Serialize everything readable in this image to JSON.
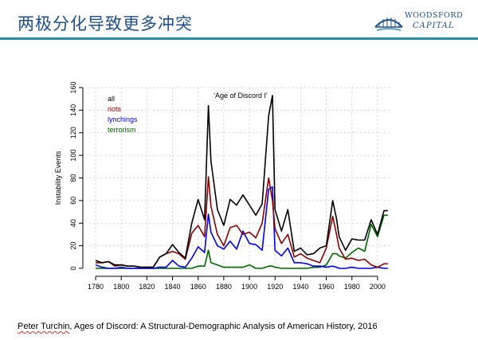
{
  "header": {
    "title": "两极分化导致更多冲突",
    "logo": {
      "line1": "WOODSFORD",
      "line2": "CAPITAL",
      "color": "#1f4e8c"
    }
  },
  "colors": {
    "accent_bar": "#2a8aa8"
  },
  "chart_data": {
    "type": "line",
    "title": "",
    "annotation": "'Age of Discord I'",
    "xlabel": "",
    "ylabel": "Instability Events",
    "xlim": [
      1775,
      2010
    ],
    "ylim": [
      0,
      160
    ],
    "xticks": [
      1780,
      1800,
      1820,
      1840,
      1860,
      1880,
      1900,
      1920,
      1940,
      1960,
      1980,
      2000
    ],
    "yticks": [
      0,
      20,
      40,
      60,
      80,
      100,
      120,
      140,
      160
    ],
    "grid": true,
    "legend_position": "top-left",
    "x": [
      1780,
      1785,
      1790,
      1795,
      1800,
      1805,
      1810,
      1815,
      1820,
      1825,
      1830,
      1835,
      1840,
      1845,
      1850,
      1855,
      1860,
      1865,
      1868,
      1870,
      1875,
      1880,
      1885,
      1890,
      1895,
      1900,
      1905,
      1910,
      1915,
      1918,
      1920,
      1925,
      1930,
      1935,
      1940,
      1945,
      1950,
      1955,
      1960,
      1965,
      1968,
      1970,
      1975,
      1980,
      1985,
      1990,
      1995,
      2000,
      2005,
      2008
    ],
    "series": [
      {
        "name": "all",
        "color": "#000000",
        "values": [
          7,
          5,
          6,
          3,
          3,
          2,
          2,
          1,
          1,
          1,
          10,
          13,
          21,
          14,
          9,
          40,
          61,
          43,
          144,
          95,
          52,
          38,
          61,
          56,
          65,
          56,
          47,
          57,
          135,
          153,
          52,
          33,
          52,
          15,
          18,
          12,
          13,
          18,
          20,
          60,
          44,
          28,
          16,
          26,
          25,
          25,
          43,
          30,
          51,
          51
        ]
      },
      {
        "name": "riots",
        "color": "#8b0000",
        "values": [
          5,
          5,
          6,
          2,
          3,
          2,
          2,
          1,
          1,
          1,
          10,
          13,
          15,
          13,
          8,
          31,
          38,
          28,
          81,
          55,
          30,
          20,
          36,
          38,
          30,
          32,
          27,
          40,
          80,
          60,
          35,
          22,
          30,
          10,
          13,
          9,
          7,
          5,
          18,
          46,
          30,
          18,
          8,
          9,
          7,
          8,
          3,
          1,
          4,
          4
        ]
      },
      {
        "name": "lynchings",
        "color": "#0000ee",
        "values": [
          3,
          1,
          0,
          0,
          1,
          0,
          0,
          0,
          0,
          0,
          1,
          1,
          7,
          2,
          1,
          9,
          19,
          14,
          48,
          32,
          20,
          17,
          24,
          17,
          33,
          22,
          21,
          16,
          70,
          72,
          16,
          11,
          18,
          5,
          5,
          4,
          2,
          2,
          1,
          2,
          1,
          0,
          0,
          1,
          0,
          0,
          0,
          1,
          0,
          0
        ]
      },
      {
        "name": "terrorism",
        "color": "#006400",
        "values": [
          0,
          0,
          0,
          0,
          0,
          0,
          0,
          0,
          0,
          0,
          0,
          0,
          0,
          0,
          0,
          0,
          2,
          2,
          16,
          5,
          3,
          1,
          1,
          1,
          1,
          3,
          0,
          0,
          2,
          2,
          1,
          0,
          0,
          0,
          0,
          0,
          1,
          1,
          3,
          13,
          13,
          11,
          9,
          14,
          18,
          15,
          39,
          28,
          47,
          47
        ]
      }
    ]
  },
  "citation": {
    "author": "Peter Turchin",
    "rest": ", Ages of Discord: A Structural-Demographic Analysis of American History, 2016"
  }
}
